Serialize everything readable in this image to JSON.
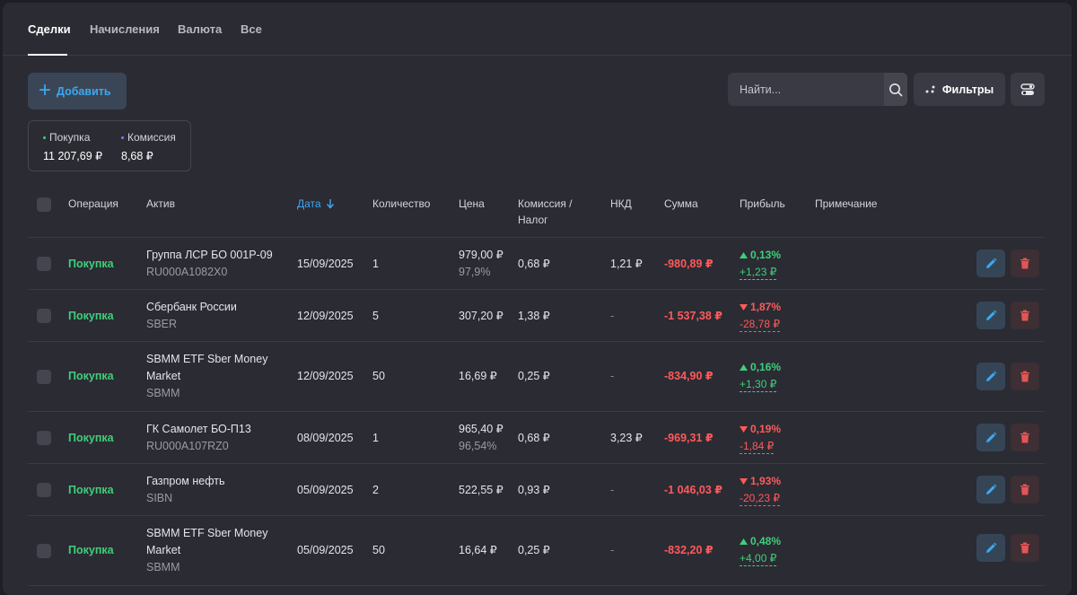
{
  "tabs": [
    {
      "label": "Сделки",
      "active": true
    },
    {
      "label": "Начисления",
      "active": false
    },
    {
      "label": "Валюта",
      "active": false
    },
    {
      "label": "Все",
      "active": false
    }
  ],
  "toolbar": {
    "add_label": "Добавить",
    "search_placeholder": "Найти...",
    "filters_label": "Фильтры"
  },
  "summary": {
    "purchase_label": "Покупка",
    "purchase_value": "11 207,69 ₽",
    "commission_label": "Комиссия",
    "commission_value": "8,68 ₽"
  },
  "columns": {
    "operation": "Операция",
    "asset": "Актив",
    "date": "Дата",
    "quantity": "Количество",
    "price": "Цена",
    "commission_line1": "Комиссия /",
    "commission_line2": "Налог",
    "nkd": "НКД",
    "sum": "Сумма",
    "profit": "Прибыль",
    "note": "Примечание"
  },
  "rows": [
    {
      "operation": "Покупка",
      "asset_name": "Группа ЛСР БО 001Р-09",
      "asset_name2": "",
      "asset_code": "RU000A1082X0",
      "date": "15/09/2025",
      "quantity": "1",
      "price": "979,00 ₽",
      "price_pct": "97,9%",
      "commission": "0,68 ₽",
      "nkd": "1,21 ₽",
      "sum": "-980,89 ₽",
      "profit_pct": "0,13%",
      "profit_abs": "+1,23 ₽",
      "direction": "up"
    },
    {
      "operation": "Покупка",
      "asset_name": "Сбербанк России",
      "asset_name2": "",
      "asset_code": "SBER",
      "date": "12/09/2025",
      "quantity": "5",
      "price": "307,20 ₽",
      "price_pct": "",
      "commission": "1,38 ₽",
      "nkd": "-",
      "sum": "-1 537,38 ₽",
      "profit_pct": "1,87%",
      "profit_abs": "-28,78 ₽",
      "direction": "down"
    },
    {
      "operation": "Покупка",
      "asset_name": "SBMM ETF Sber Money",
      "asset_name2": "Market",
      "asset_code": "SBMM",
      "date": "12/09/2025",
      "quantity": "50",
      "price": "16,69 ₽",
      "price_pct": "",
      "commission": "0,25 ₽",
      "nkd": "-",
      "sum": "-834,90 ₽",
      "profit_pct": "0,16%",
      "profit_abs": "+1,30 ₽",
      "direction": "up"
    },
    {
      "operation": "Покупка",
      "asset_name": "ГК Самолет БО-П13",
      "asset_name2": "",
      "asset_code": "RU000A107RZ0",
      "date": "08/09/2025",
      "quantity": "1",
      "price": "965,40 ₽",
      "price_pct": "96,54%",
      "commission": "0,68 ₽",
      "nkd": "3,23 ₽",
      "sum": "-969,31 ₽",
      "profit_pct": "0,19%",
      "profit_abs": "-1,84 ₽",
      "direction": "down"
    },
    {
      "operation": "Покупка",
      "asset_name": "Газпром нефть",
      "asset_name2": "",
      "asset_code": "SIBN",
      "date": "05/09/2025",
      "quantity": "2",
      "price": "522,55 ₽",
      "price_pct": "",
      "commission": "0,93 ₽",
      "nkd": "-",
      "sum": "-1 046,03 ₽",
      "profit_pct": "1,93%",
      "profit_abs": "-20,23 ₽",
      "direction": "down"
    },
    {
      "operation": "Покупка",
      "asset_name": "SBMM ETF Sber Money",
      "asset_name2": "Market",
      "asset_code": "SBMM",
      "date": "05/09/2025",
      "quantity": "50",
      "price": "16,64 ₽",
      "price_pct": "",
      "commission": "0,25 ₽",
      "nkd": "-",
      "sum": "-832,20 ₽",
      "profit_pct": "0,48%",
      "profit_abs": "+4,00 ₽",
      "direction": "up"
    }
  ],
  "colors": {
    "accent": "#3da8f0",
    "positive": "#3ecf7a",
    "negative": "#ff5a5a",
    "purchase_dot": "#3ecf7a",
    "commission_dot": "#a06cf0"
  }
}
